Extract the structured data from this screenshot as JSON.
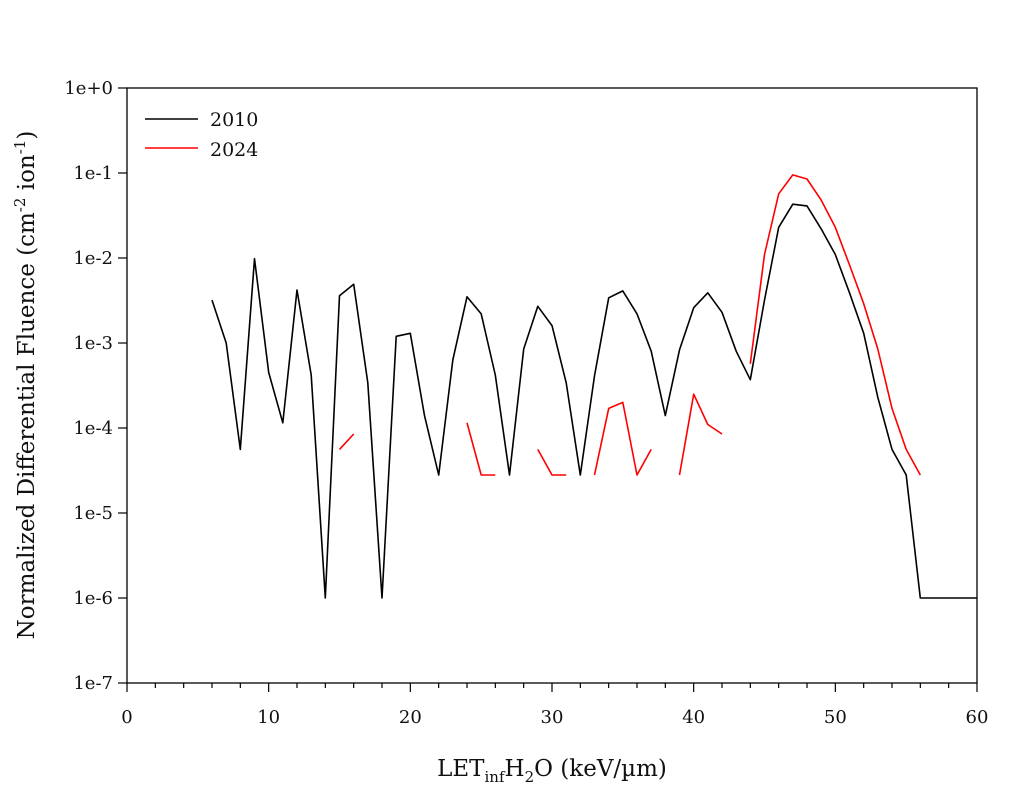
{
  "chart_data": {
    "type": "line",
    "title": "",
    "xlabel": {
      "main": "LET",
      "sub1": "inf",
      "mid": "H",
      "sub2": "2",
      "rest": "O (keV/µm)"
    },
    "ylabel": {
      "main": "Normalized Differential Fluence (cm",
      "sup1": "-2",
      "mid": " ion",
      "sup2": "-1",
      "rest": ")"
    },
    "xlim": [
      0,
      60
    ],
    "ylim": [
      1e-07,
      1
    ],
    "yscale": "log",
    "x_ticks": [
      0,
      10,
      20,
      30,
      40,
      50,
      60
    ],
    "x_tick_labels": [
      "0",
      "10",
      "20",
      "30",
      "40",
      "50",
      "60"
    ],
    "y_ticks": [
      1,
      0.1,
      0.01,
      0.001,
      0.0001,
      1e-05,
      1e-06,
      1e-07
    ],
    "y_tick_labels": [
      "1e+0",
      "1e-1",
      "1e-2",
      "1e-3",
      "1e-4",
      "1e-5",
      "1e-6",
      "1e-7"
    ],
    "grid": false,
    "legend_position": "top-left",
    "series": [
      {
        "name": "2010",
        "color": "#000000",
        "x": [
          6,
          7,
          8,
          9,
          10,
          11,
          12,
          13,
          14,
          15,
          16,
          17,
          18,
          19,
          20,
          21,
          22,
          23,
          24,
          25,
          26,
          27,
          28,
          29,
          30,
          31,
          32,
          33,
          34,
          35,
          36,
          37,
          38,
          39,
          40,
          41,
          42,
          43,
          44,
          45,
          46,
          47,
          48,
          49,
          50,
          51,
          52,
          53,
          54,
          55,
          56,
          60
        ],
        "y": [
          0.0032,
          0.001,
          5.6e-05,
          0.0098,
          0.00045,
          0.000115,
          0.0042,
          0.00042,
          1e-06,
          0.0036,
          0.0049,
          0.00034,
          1e-06,
          0.0012,
          0.0013,
          0.00014,
          2.8e-05,
          0.00063,
          0.0035,
          0.0022,
          0.00042,
          2.8e-05,
          0.00085,
          0.0027,
          0.0016,
          0.00034,
          2.8e-05,
          0.00041,
          0.0034,
          0.0041,
          0.0022,
          0.0008,
          0.00014,
          0.00083,
          0.0026,
          0.0039,
          0.0023,
          0.0008,
          0.00037,
          0.0032,
          0.023,
          0.043,
          0.041,
          0.022,
          0.011,
          0.0039,
          0.0013,
          0.00023,
          5.6e-05,
          2.8e-05,
          1e-06,
          1e-06
        ]
      },
      {
        "name": "2024",
        "color": "#ff0000",
        "x": [
          15,
          16,
          17,
          24,
          25,
          26,
          27,
          29,
          30,
          31,
          32,
          33,
          34,
          35,
          36,
          37,
          38,
          39,
          40,
          41,
          42,
          43,
          44,
          45,
          46,
          47,
          48,
          49,
          50,
          51,
          52,
          53,
          54,
          55,
          56
        ],
        "y": [
          5.6e-05,
          8.5e-05,
          null,
          0.000115,
          2.8e-05,
          2.8e-05,
          null,
          5.6e-05,
          2.8e-05,
          2.8e-05,
          null,
          2.8e-05,
          0.00017,
          0.0002,
          2.8e-05,
          5.6e-05,
          null,
          2.8e-05,
          0.00025,
          0.00011,
          8.5e-05,
          null,
          0.00057,
          0.011,
          0.057,
          0.095,
          0.085,
          0.048,
          0.023,
          0.0083,
          0.0029,
          0.00085,
          0.00017,
          5.6e-05,
          2.8e-05
        ]
      }
    ]
  }
}
